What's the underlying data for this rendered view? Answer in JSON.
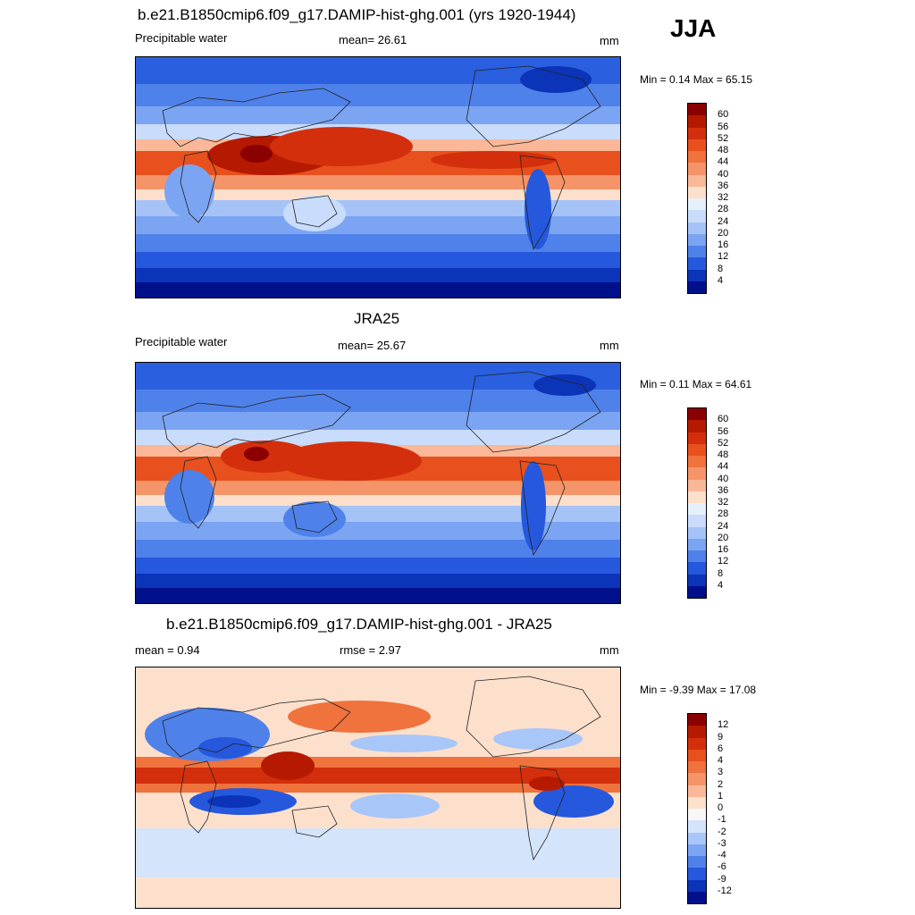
{
  "season": "JJA",
  "panels": [
    {
      "title": "b.e21.B1850cmip6.f09_g17.DAMIP-hist-ghg.001 (yrs 1920-1944)",
      "left_label": "Precipitable water",
      "center_label": "mean=  26.61",
      "units": "mm",
      "minmax": "Min =   0.14 Max =  65.15",
      "colorbar": {
        "labels": [
          "60",
          "56",
          "52",
          "48",
          "44",
          "40",
          "36",
          "32",
          "28",
          "24",
          "20",
          "16",
          "12",
          "8",
          "4"
        ],
        "colors": [
          "#8b0000",
          "#b51a00",
          "#d42f0c",
          "#e8501e",
          "#f0723c",
          "#f59468",
          "#fab898",
          "#fde0cc",
          "#e6f0fc",
          "#c9dcfb",
          "#a6c3f8",
          "#7ba4f2",
          "#4f81ea",
          "#2558dc",
          "#0b34b8",
          "#000f8a"
        ]
      }
    },
    {
      "title": "JRA25",
      "left_label": "Precipitable water",
      "center_label": "mean=  25.67",
      "units": "mm",
      "minmax": "Min =   0.11 Max =  64.61",
      "colorbar": {
        "labels": [
          "60",
          "56",
          "52",
          "48",
          "44",
          "40",
          "36",
          "32",
          "28",
          "24",
          "20",
          "16",
          "12",
          "8",
          "4"
        ],
        "colors": [
          "#8b0000",
          "#b51a00",
          "#d42f0c",
          "#e8501e",
          "#f0723c",
          "#f59468",
          "#fab898",
          "#fde0cc",
          "#e6f0fc",
          "#c9dcfb",
          "#a6c3f8",
          "#7ba4f2",
          "#4f81ea",
          "#2558dc",
          "#0b34b8",
          "#000f8a"
        ]
      }
    },
    {
      "title": "b.e21.B1850cmip6.f09_g17.DAMIP-hist-ghg.001 - JRA25",
      "left_label": "mean =   0.94",
      "center_label": "rmse =   2.97",
      "units": "mm",
      "minmax": "Min =  -9.39 Max =  17.08",
      "colorbar": {
        "labels": [
          "12",
          "9",
          "6",
          "4",
          "3",
          "2",
          "1",
          "0",
          "-1",
          "-2",
          "-3",
          "-4",
          "-6",
          "-9",
          "-12"
        ],
        "colors": [
          "#8b0000",
          "#b51a00",
          "#d42f0c",
          "#e8501e",
          "#f0723c",
          "#f59468",
          "#fab898",
          "#fde0cc",
          "#f7f7f7",
          "#d4e4fb",
          "#a9c6f8",
          "#7ba4f2",
          "#4f81ea",
          "#2558dc",
          "#0b34b8",
          "#000f8a"
        ]
      }
    }
  ]
}
